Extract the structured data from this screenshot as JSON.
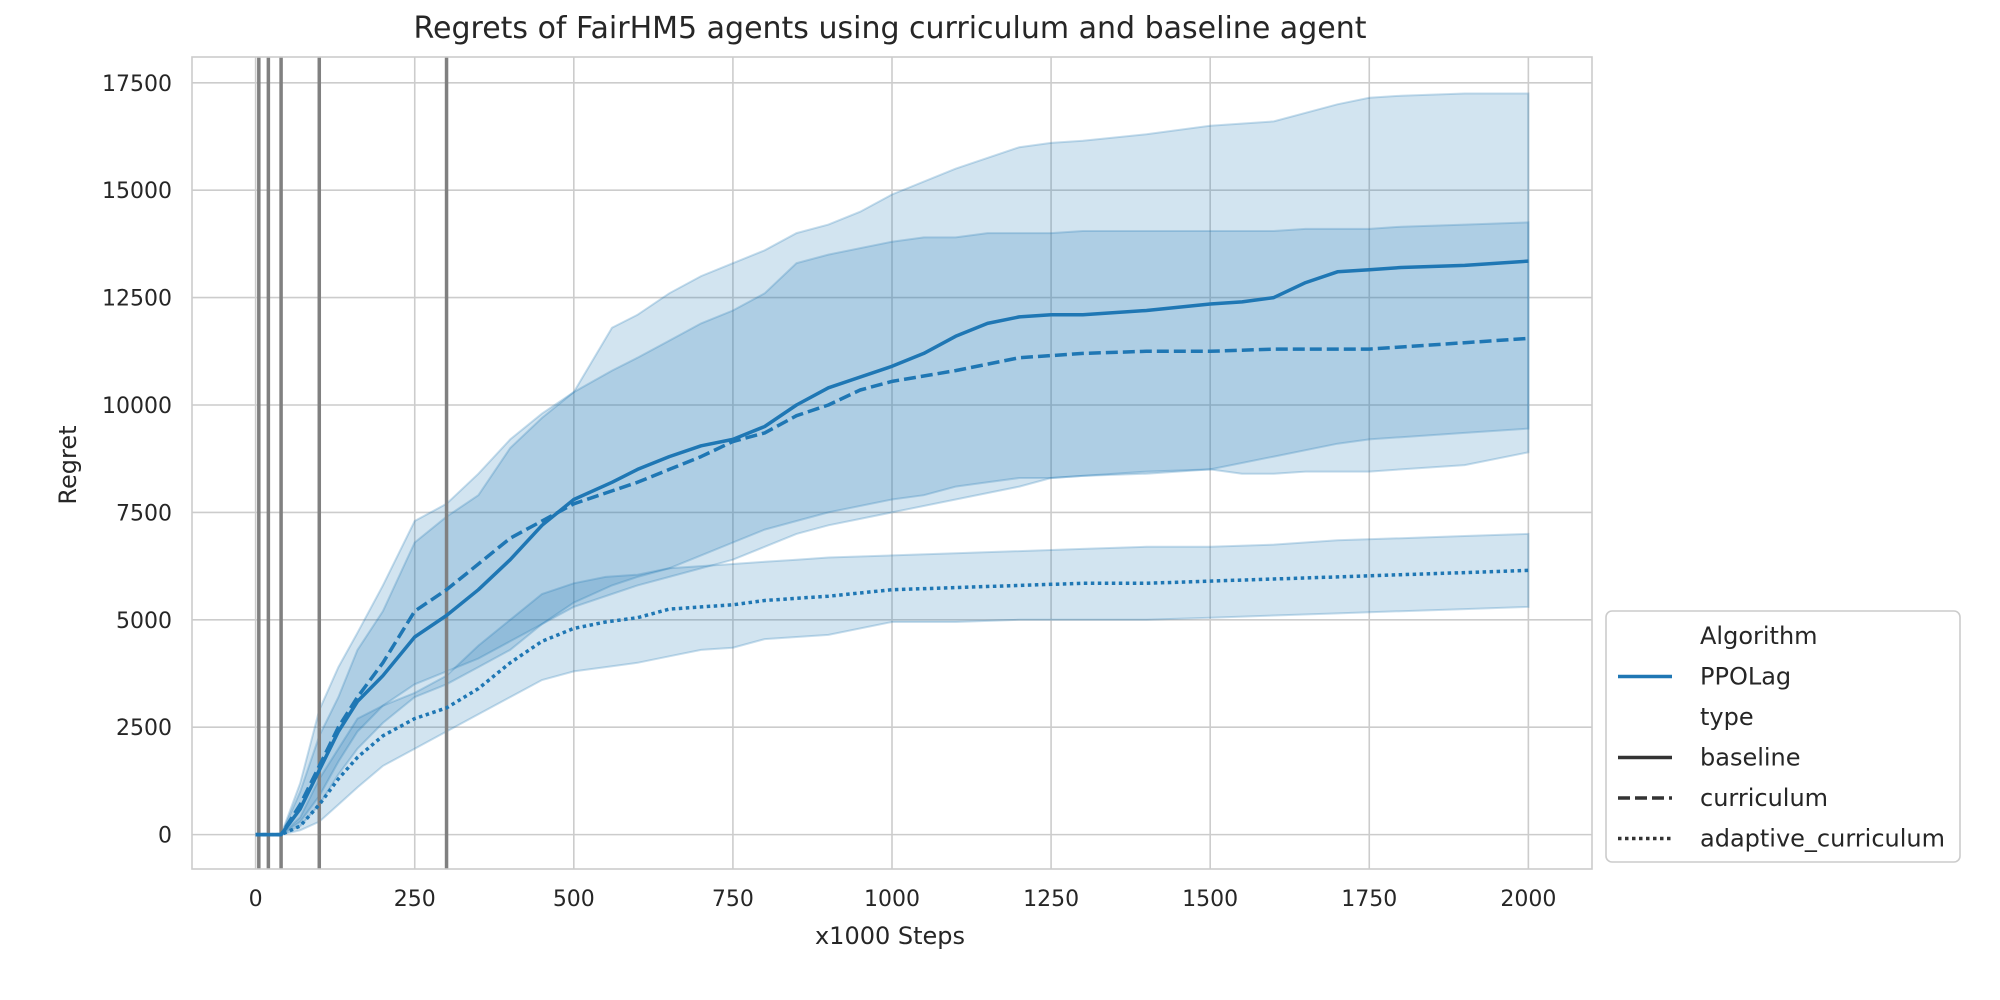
{
  "chart_data": {
    "type": "line",
    "title": "Regrets of FairHM5 agents using curriculum and baseline agent",
    "xlabel": "x1000 Steps",
    "ylabel": "Regret",
    "xlim": [
      -100,
      2100
    ],
    "ylim": [
      -800,
      18100
    ],
    "xticks": [
      0,
      250,
      500,
      750,
      1000,
      1250,
      1500,
      1750,
      2000
    ],
    "yticks": [
      0,
      2500,
      5000,
      7500,
      10000,
      12500,
      15000,
      17500
    ],
    "grid": true,
    "vlines": [
      5,
      20,
      40,
      100,
      300
    ],
    "line_color": "#1f77b4",
    "band_color": "#1f77b4",
    "vline_color": "#808080",
    "legend": {
      "placement": "lower-right-outside",
      "entries": [
        {
          "label": "Algorithm",
          "kind": "header"
        },
        {
          "label": "PPOLag",
          "kind": "color",
          "color": "#1f77b4"
        },
        {
          "label": "type",
          "kind": "header"
        },
        {
          "label": "baseline",
          "kind": "style",
          "dash": "solid"
        },
        {
          "label": "curriculum",
          "kind": "style",
          "dash": "dashed"
        },
        {
          "label": "adaptive_curriculum",
          "kind": "style",
          "dash": "dotted"
        }
      ]
    },
    "series": [
      {
        "name": "baseline",
        "algorithm": "PPOLag",
        "dash": "solid",
        "x": [
          0,
          20,
          40,
          70,
          100,
          130,
          160,
          200,
          250,
          300,
          350,
          400,
          450,
          500,
          560,
          600,
          650,
          700,
          750,
          800,
          850,
          900,
          1000,
          1050,
          1100,
          1150,
          1200,
          1250,
          1300,
          1400,
          1500,
          1550,
          1600,
          1650,
          1700,
          1750,
          1800,
          1900,
          2000
        ],
        "y": [
          0,
          0,
          0,
          600,
          1500,
          2400,
          3100,
          3700,
          4600,
          5100,
          5700,
          6400,
          7200,
          7800,
          8200,
          8500,
          8800,
          9050,
          9200,
          9500,
          10000,
          10400,
          10900,
          11200,
          11600,
          11900,
          12050,
          12100,
          12100,
          12200,
          12350,
          12400,
          12500,
          12850,
          13100,
          13150,
          13200,
          13250,
          13350
        ],
        "lower": [
          0,
          0,
          0,
          200,
          700,
          1400,
          2000,
          2600,
          3200,
          3500,
          3900,
          4300,
          4900,
          5400,
          5800,
          6000,
          6200,
          6500,
          6800,
          7100,
          7300,
          7500,
          7800,
          7900,
          8100,
          8200,
          8300,
          8300,
          8350,
          8450,
          8500,
          8400,
          8400,
          8450,
          8450,
          8450,
          8500,
          8600,
          8900
        ],
        "upper": [
          0,
          0,
          0,
          1000,
          2300,
          3200,
          4300,
          5200,
          6800,
          7400,
          7900,
          9000,
          9700,
          10300,
          10800,
          11100,
          11500,
          11900,
          12200,
          12600,
          13300,
          13500,
          13800,
          13900,
          13900,
          14000,
          14000,
          14000,
          14050,
          14050,
          14050,
          14050,
          14050,
          14100,
          14100,
          14100,
          14150,
          14200,
          14250
        ]
      },
      {
        "name": "curriculum",
        "algorithm": "PPOLag",
        "dash": "dashed",
        "x": [
          0,
          20,
          40,
          70,
          100,
          130,
          160,
          200,
          250,
          300,
          350,
          400,
          450,
          500,
          560,
          600,
          650,
          700,
          750,
          800,
          850,
          900,
          950,
          1000,
          1100,
          1200,
          1250,
          1300,
          1400,
          1500,
          1600,
          1700,
          1750,
          1800,
          1900,
          2000
        ],
        "y": [
          0,
          0,
          0,
          700,
          1600,
          2500,
          3200,
          4000,
          5200,
          5700,
          6300,
          6900,
          7300,
          7700,
          8000,
          8200,
          8500,
          8800,
          9150,
          9350,
          9750,
          10000,
          10350,
          10550,
          10800,
          11100,
          11150,
          11200,
          11250,
          11250,
          11300,
          11300,
          11300,
          11350,
          11450,
          11550
        ],
        "lower": [
          0,
          0,
          0,
          300,
          900,
          1700,
          2400,
          3000,
          3500,
          3800,
          4100,
          4500,
          4900,
          5300,
          5600,
          5800,
          6000,
          6200,
          6400,
          6700,
          7000,
          7200,
          7350,
          7500,
          7800,
          8100,
          8300,
          8350,
          8400,
          8500,
          8800,
          9100,
          9200,
          9250,
          9350,
          9450
        ],
        "upper": [
          0,
          0,
          0,
          1200,
          2900,
          3900,
          4700,
          5800,
          7300,
          7700,
          8400,
          9200,
          9800,
          10300,
          11800,
          12100,
          12600,
          13000,
          13300,
          13600,
          14000,
          14200,
          14500,
          14900,
          15500,
          16000,
          16100,
          16150,
          16300,
          16500,
          16600,
          17000,
          17150,
          17200,
          17250,
          17250
        ]
      },
      {
        "name": "adaptive_curriculum",
        "algorithm": "PPOLag",
        "dash": "dotted",
        "x": [
          0,
          20,
          40,
          70,
          100,
          130,
          160,
          200,
          250,
          300,
          350,
          400,
          450,
          500,
          550,
          600,
          650,
          700,
          750,
          800,
          850,
          900,
          1000,
          1100,
          1200,
          1300,
          1400,
          1500,
          1600,
          1700,
          1800,
          1900,
          2000
        ],
        "y": [
          0,
          0,
          0,
          200,
          700,
          1300,
          1800,
          2300,
          2700,
          2950,
          3400,
          4000,
          4500,
          4800,
          4950,
          5050,
          5250,
          5300,
          5350,
          5450,
          5500,
          5550,
          5700,
          5750,
          5800,
          5850,
          5850,
          5900,
          5950,
          6000,
          6050,
          6100,
          6150
        ],
        "lower": [
          0,
          0,
          0,
          100,
          300,
          700,
          1100,
          1600,
          2000,
          2400,
          2800,
          3200,
          3600,
          3800,
          3900,
          4000,
          4150,
          4300,
          4350,
          4550,
          4600,
          4650,
          4950,
          4950,
          5000,
          5000,
          5000,
          5050,
          5100,
          5150,
          5200,
          5250,
          5300
        ],
        "upper": [
          0,
          0,
          0,
          400,
          1300,
          2000,
          2700,
          3000,
          3300,
          3700,
          4400,
          5000,
          5600,
          5850,
          6000,
          6050,
          6200,
          6250,
          6300,
          6350,
          6400,
          6450,
          6500,
          6550,
          6600,
          6650,
          6700,
          6700,
          6750,
          6850,
          6900,
          6950,
          7000
        ]
      }
    ]
  }
}
